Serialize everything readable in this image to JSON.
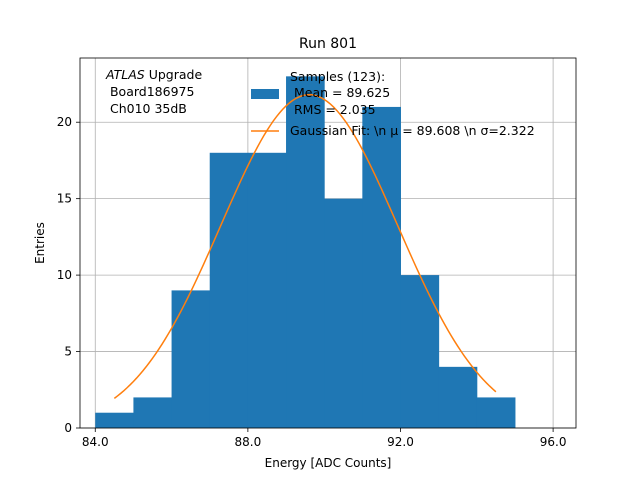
{
  "chart_data": {
    "type": "bar",
    "title": "Run 801",
    "xlabel": "Energy [ADC Counts]",
    "ylabel": "Entries",
    "xlim": [
      83.6,
      96.6
    ],
    "ylim": [
      0,
      24.2
    ],
    "xticks": [
      84.0,
      88.0,
      92.0,
      96.0
    ],
    "xtick_labels": [
      "84.0",
      "88.0",
      "92.0",
      "96.0"
    ],
    "yticks": [
      0,
      5,
      10,
      15,
      20
    ],
    "ytick_labels": [
      "0",
      "5",
      "10",
      "15",
      "20"
    ],
    "grid": true,
    "histogram": {
      "name": "Samples (123):",
      "color": "#1f77b4",
      "bins": [
        {
          "x0": 84.0,
          "x1": 85.0,
          "count": 1
        },
        {
          "x0": 85.0,
          "x1": 86.0,
          "count": 2
        },
        {
          "x0": 86.0,
          "x1": 87.0,
          "count": 9
        },
        {
          "x0": 87.0,
          "x1": 88.0,
          "count": 18
        },
        {
          "x0": 88.0,
          "x1": 89.0,
          "count": 18
        },
        {
          "x0": 89.0,
          "x1": 90.0,
          "count": 23
        },
        {
          "x0": 90.0,
          "x1": 91.0,
          "count": 15
        },
        {
          "x0": 91.0,
          "x1": 92.0,
          "count": 21
        },
        {
          "x0": 92.0,
          "x1": 93.0,
          "count": 10
        },
        {
          "x0": 93.0,
          "x1": 94.0,
          "count": 4
        },
        {
          "x0": 94.0,
          "x1": 95.0,
          "count": 2
        }
      ]
    },
    "fit": {
      "type": "gaussian",
      "color": "#ff7f0e",
      "amplitude": 21.8,
      "mu": 89.608,
      "sigma": 2.322,
      "x_range": [
        84.5,
        94.5
      ]
    },
    "legend": {
      "position": "top-center",
      "entries": [
        {
          "series": "histogram",
          "lines": [
            "Samples (123):",
            " Mean = 89.625",
            " RMS = 2.035"
          ]
        },
        {
          "series": "fit",
          "lines": [
            "Gaussian Fit: \\n μ = 89.608 \\n σ=2.322"
          ]
        }
      ]
    },
    "annotation": {
      "italic": "ATLAS",
      "rest": " Upgrade",
      "line2": " Board186975",
      "line3": " Ch010 35dB",
      "position": "top-left"
    }
  }
}
